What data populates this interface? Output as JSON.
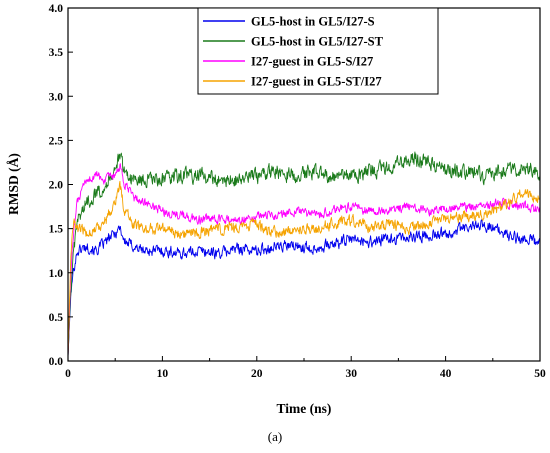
{
  "chart_data": {
    "type": "line",
    "xlabel": "Time (ns)",
    "ylabel": "RMSD (Å)",
    "caption": "(a)",
    "xlim": [
      0,
      50
    ],
    "ylim": [
      0.0,
      4.0
    ],
    "xticks": [
      "0",
      "10",
      "20",
      "30",
      "40",
      "50"
    ],
    "yticks": [
      "0.0",
      "0.5",
      "1.0",
      "1.5",
      "2.0",
      "2.5",
      "3.0",
      "3.5",
      "4.0"
    ],
    "grid": false,
    "legend_position": "top-right",
    "series": [
      {
        "name": "GL5-host in GL5/I27-S",
        "color": "#0000ee",
        "x": [
          0,
          0.3,
          0.6,
          1,
          2,
          3,
          4,
          5,
          5.5,
          6,
          7,
          8,
          10,
          12,
          14,
          16,
          18,
          20,
          22,
          24,
          26,
          28,
          30,
          32,
          34,
          36,
          38,
          40,
          42,
          44,
          46,
          48,
          50
        ],
        "y": [
          0.05,
          0.75,
          1.05,
          1.25,
          1.3,
          1.25,
          1.35,
          1.45,
          1.52,
          1.35,
          1.3,
          1.25,
          1.25,
          1.22,
          1.25,
          1.22,
          1.28,
          1.25,
          1.3,
          1.3,
          1.28,
          1.32,
          1.38,
          1.35,
          1.38,
          1.4,
          1.42,
          1.45,
          1.5,
          1.55,
          1.45,
          1.38,
          1.35
        ],
        "noise": 0.1
      },
      {
        "name": "GL5-host in GL5/I27-ST",
        "color": "#1a7a1a",
        "x": [
          0,
          0.3,
          0.6,
          1,
          2,
          3,
          4,
          5,
          5.5,
          6,
          7,
          8,
          10,
          12,
          14,
          16,
          18,
          20,
          22,
          24,
          26,
          28,
          30,
          32,
          34,
          36,
          38,
          40,
          42,
          44,
          46,
          48,
          50
        ],
        "y": [
          0.05,
          0.8,
          1.2,
          1.6,
          1.8,
          1.9,
          2.0,
          2.2,
          2.3,
          2.15,
          2.05,
          2.05,
          2.05,
          2.1,
          2.1,
          2.05,
          2.05,
          2.1,
          2.15,
          2.1,
          2.15,
          2.1,
          2.1,
          2.15,
          2.2,
          2.3,
          2.25,
          2.15,
          2.15,
          2.1,
          2.15,
          2.2,
          2.15
        ],
        "noise": 0.13
      },
      {
        "name": "I27-guest in GL5-S/I27",
        "color": "#ff00ff",
        "x": [
          0,
          0.3,
          0.6,
          1,
          2,
          3,
          4,
          5,
          5.5,
          6,
          7,
          8,
          10,
          12,
          14,
          16,
          18,
          20,
          22,
          24,
          26,
          28,
          30,
          32,
          34,
          36,
          38,
          40,
          42,
          44,
          46,
          48,
          50
        ],
        "y": [
          0.05,
          1.0,
          1.5,
          1.8,
          2.05,
          2.1,
          2.05,
          2.1,
          2.2,
          2.0,
          1.85,
          1.8,
          1.7,
          1.65,
          1.6,
          1.6,
          1.6,
          1.65,
          1.65,
          1.7,
          1.65,
          1.7,
          1.75,
          1.7,
          1.7,
          1.75,
          1.7,
          1.72,
          1.75,
          1.75,
          1.8,
          1.75,
          1.72
        ],
        "noise": 0.08
      },
      {
        "name": "I27-guest in GL5-ST/I27",
        "color": "#f5a300",
        "x": [
          0,
          0.3,
          0.6,
          1,
          2,
          3,
          4,
          5,
          5.5,
          6,
          7,
          8,
          10,
          12,
          14,
          16,
          18,
          20,
          22,
          24,
          26,
          28,
          30,
          32,
          34,
          36,
          38,
          40,
          42,
          44,
          46,
          48,
          50
        ],
        "y": [
          0.05,
          1.2,
          1.6,
          1.5,
          1.45,
          1.5,
          1.6,
          1.8,
          2.0,
          1.7,
          1.55,
          1.5,
          1.5,
          1.45,
          1.45,
          1.5,
          1.5,
          1.55,
          1.45,
          1.5,
          1.5,
          1.55,
          1.6,
          1.5,
          1.55,
          1.5,
          1.55,
          1.6,
          1.65,
          1.65,
          1.75,
          1.9,
          1.85
        ],
        "noise": 0.1
      }
    ]
  }
}
